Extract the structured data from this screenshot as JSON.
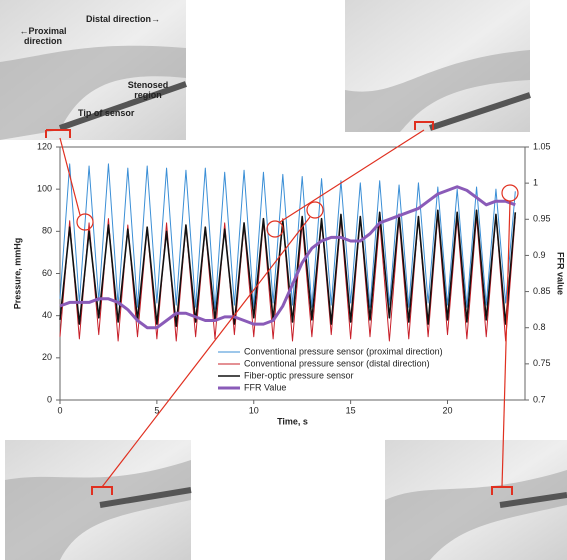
{
  "chart_data": {
    "type": "line",
    "x_label": "Time, s",
    "y_label": "Pressure, mmHg",
    "y2_label": "FFR value",
    "annotations": [
      "Distal direction→",
      "←Proximal direction",
      "Stenosed region",
      "Tip of sensor"
    ],
    "xlim": [
      0,
      24
    ],
    "xticks": [
      0,
      5,
      10,
      15,
      20
    ],
    "ylim": [
      0,
      120
    ],
    "yticks": [
      0,
      20,
      40,
      60,
      80,
      100,
      120
    ],
    "y2lim": [
      0.7,
      1.05
    ],
    "y2ticks": [
      0.7,
      0.75,
      0.8,
      0.85,
      0.9,
      0.95,
      1,
      1.05
    ],
    "x": [
      0,
      0.5,
      1,
      1.5,
      2,
      2.5,
      3,
      3.5,
      4,
      4.5,
      5,
      5.5,
      6,
      6.5,
      7,
      7.5,
      8,
      8.5,
      9,
      9.5,
      10,
      10.5,
      11,
      11.5,
      12,
      12.5,
      13,
      13.5,
      14,
      14.5,
      15,
      15.5,
      16,
      16.5,
      17,
      17.5,
      18,
      18.5,
      19,
      19.5,
      20,
      20.5,
      21,
      21.5,
      22,
      22.5,
      23,
      23.5
    ],
    "series": [
      {
        "name": "Conventional pressure sensor (proximal direction)",
        "color": "#3b8fd6",
        "width": 1,
        "values": [
          48,
          112,
          46,
          111,
          47,
          112,
          45,
          110,
          44,
          111,
          46,
          110,
          45,
          109,
          44,
          110,
          43,
          108,
          45,
          109,
          44,
          108,
          46,
          107,
          45,
          106,
          44,
          105,
          45,
          104,
          46,
          103,
          44,
          104,
          45,
          102,
          44,
          103,
          46,
          101,
          45,
          100,
          44,
          101,
          45,
          100,
          46,
          99
        ]
      },
      {
        "name": "Conventional pressure sensor (distal direction)",
        "color": "#c8202a",
        "width": 1,
        "values": [
          30,
          85,
          29,
          84,
          31,
          86,
          28,
          83,
          30,
          82,
          29,
          84,
          28,
          83,
          30,
          82,
          29,
          84,
          31,
          83,
          30,
          85,
          29,
          86,
          28,
          84,
          30,
          85,
          31,
          86,
          29,
          87,
          30,
          85,
          28,
          86,
          29,
          87,
          30,
          88,
          31,
          86,
          29,
          87,
          30,
          88,
          28,
          87
        ]
      },
      {
        "name": "Fiber-optic pressure sensor",
        "color": "#111111",
        "width": 1.6,
        "values": [
          38,
          82,
          36,
          80,
          39,
          83,
          37,
          81,
          38,
          82,
          36,
          80,
          35,
          83,
          37,
          82,
          38,
          81,
          36,
          84,
          39,
          86,
          38,
          85,
          37,
          87,
          38,
          86,
          36,
          88,
          37,
          87,
          38,
          89,
          39,
          88,
          37,
          87,
          36,
          90,
          38,
          89,
          37,
          90,
          38,
          88,
          36,
          89
        ]
      },
      {
        "name": "FFR Value",
        "color": "#8a5bb8",
        "width": 3,
        "axis": "y2",
        "values": [
          0.83,
          0.835,
          0.835,
          0.835,
          0.84,
          0.84,
          0.835,
          0.825,
          0.81,
          0.8,
          0.8,
          0.81,
          0.82,
          0.82,
          0.815,
          0.81,
          0.81,
          0.815,
          0.815,
          0.81,
          0.805,
          0.805,
          0.81,
          0.83,
          0.86,
          0.89,
          0.91,
          0.92,
          0.925,
          0.925,
          0.92,
          0.92,
          0.93,
          0.945,
          0.95,
          0.955,
          0.96,
          0.965,
          0.975,
          0.985,
          0.99,
          0.995,
          0.99,
          0.98,
          0.97,
          0.975,
          0.975,
          0.97
        ]
      }
    ]
  }
}
